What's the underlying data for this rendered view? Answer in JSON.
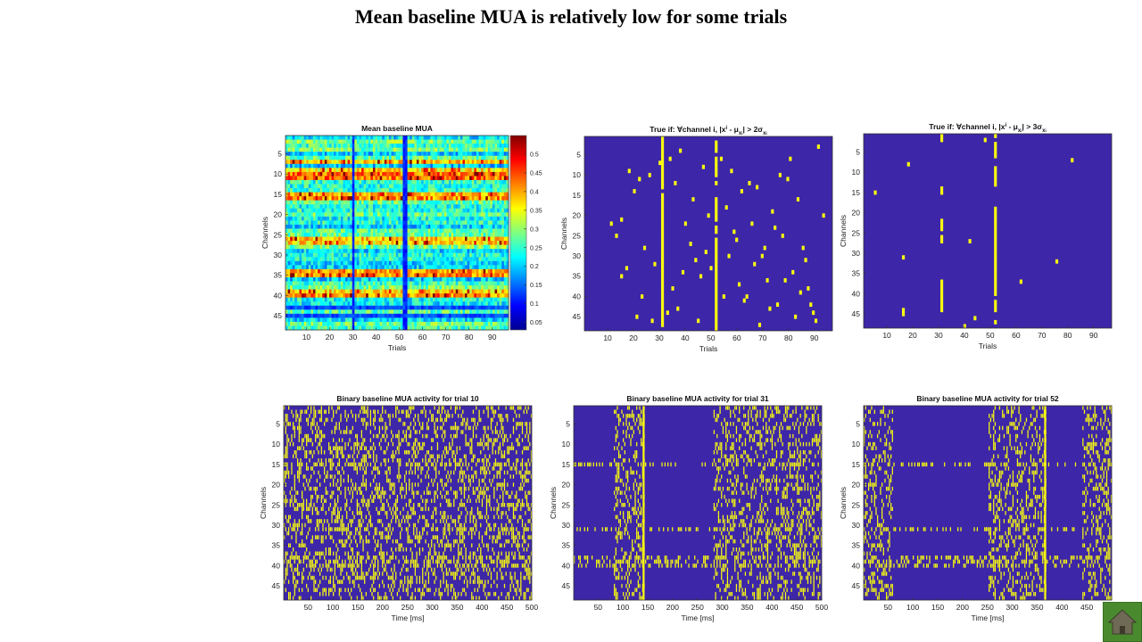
{
  "slide": {
    "title": "Mean baseline MUA is relatively low for some trials"
  },
  "icons": {
    "home": "home-icon"
  },
  "colors": {
    "background_low": "#3d26a8",
    "event": "#f9fb0e",
    "grid_line": "#4a5bd4",
    "bright_row": "#ffff40"
  },
  "chart_data": [
    {
      "id": "mean-baseline",
      "type": "heatmap",
      "title": "Mean baseline MUA",
      "xlabel": "Trials",
      "ylabel": "Channels",
      "xticks": [
        10,
        20,
        30,
        40,
        50,
        60,
        70,
        80,
        90
      ],
      "yticks": [
        5,
        10,
        15,
        20,
        25,
        30,
        35,
        40,
        45
      ],
      "xlim": [
        1,
        97
      ],
      "ylim": [
        1,
        48
      ],
      "colorbar": {
        "colormap": "jet",
        "ticks": [
          "0.05",
          "0.1",
          "0.15",
          "0.2",
          "0.25",
          "0.3",
          "0.35",
          "0.4",
          "0.45",
          "0.5"
        ],
        "range": [
          0.03,
          0.55
        ]
      },
      "high_rows": [
        7,
        9,
        10,
        11,
        15,
        16,
        26,
        27,
        34,
        35,
        39,
        40
      ],
      "low_columns": [
        30,
        52,
        53
      ],
      "low_rows": [
        43,
        45
      ]
    },
    {
      "id": "true-2sigma",
      "type": "heatmap",
      "title": "True if: ∀channel i, |xⁱ - μxᵢ| > 2σxᵢ",
      "title_parts": [
        "True if: ∀channel i, |x",
        "i",
        " - μ",
        "x",
        "i",
        "| > 2σ",
        "x",
        "i"
      ],
      "xlabel": "Trials",
      "ylabel": "Channels",
      "xticks": [
        10,
        20,
        30,
        40,
        50,
        60,
        70,
        80,
        90
      ],
      "yticks": [
        5,
        10,
        15,
        20,
        25,
        30,
        35,
        40,
        45
      ],
      "xlim": [
        1,
        97
      ],
      "ylim": [
        1,
        48
      ],
      "full_columns": [
        31,
        52
      ],
      "points": [
        [
          11,
          22
        ],
        [
          13,
          25
        ],
        [
          15,
          21
        ],
        [
          18,
          9
        ],
        [
          20,
          14
        ],
        [
          22,
          11
        ],
        [
          24,
          28
        ],
        [
          26,
          10
        ],
        [
          28,
          32
        ],
        [
          30,
          7
        ],
        [
          34,
          6
        ],
        [
          36,
          12
        ],
        [
          38,
          4
        ],
        [
          40,
          22
        ],
        [
          42,
          27
        ],
        [
          44,
          31
        ],
        [
          46,
          35
        ],
        [
          48,
          29
        ],
        [
          50,
          33
        ],
        [
          54,
          6
        ],
        [
          56,
          18
        ],
        [
          58,
          9
        ],
        [
          60,
          26
        ],
        [
          62,
          14
        ],
        [
          64,
          40
        ],
        [
          66,
          22
        ],
        [
          68,
          13
        ],
        [
          70,
          30
        ],
        [
          72,
          36
        ],
        [
          74,
          19
        ],
        [
          76,
          42
        ],
        [
          78,
          25
        ],
        [
          80,
          11
        ],
        [
          82,
          34
        ],
        [
          84,
          16
        ],
        [
          86,
          28
        ],
        [
          88,
          38
        ],
        [
          90,
          44
        ],
        [
          92,
          3
        ],
        [
          94,
          20
        ],
        [
          15,
          35
        ],
        [
          17,
          33
        ],
        [
          21,
          45
        ],
        [
          23,
          40
        ],
        [
          27,
          46
        ],
        [
          33,
          44
        ],
        [
          35,
          38
        ],
        [
          37,
          43
        ],
        [
          39,
          34
        ],
        [
          43,
          16
        ],
        [
          45,
          46
        ],
        [
          47,
          8
        ],
        [
          49,
          20
        ],
        [
          55,
          40
        ],
        [
          57,
          30
        ],
        [
          59,
          24
        ],
        [
          61,
          37
        ],
        [
          63,
          41
        ],
        [
          65,
          12
        ],
        [
          67,
          32
        ],
        [
          69,
          47
        ],
        [
          71,
          28
        ],
        [
          73,
          43
        ],
        [
          75,
          23
        ],
        [
          77,
          10
        ],
        [
          79,
          36
        ],
        [
          81,
          6
        ],
        [
          83,
          45
        ],
        [
          85,
          39
        ],
        [
          87,
          31
        ],
        [
          89,
          42
        ],
        [
          91,
          46
        ]
      ]
    },
    {
      "id": "true-3sigma",
      "type": "heatmap",
      "title": "True if: ∀channel i, |xⁱ - μxᵢ| > 3σxᵢ",
      "title_parts": [
        "True if: ∀channel i, |x",
        "i",
        " - μ",
        "x",
        "i",
        "| > 3σ",
        "x",
        "i"
      ],
      "xlabel": "Trials",
      "ylabel": "Channels",
      "xticks": [
        10,
        20,
        30,
        40,
        50,
        60,
        70,
        80,
        90
      ],
      "yticks": [
        5,
        10,
        15,
        20,
        25,
        30,
        35,
        40,
        45
      ],
      "xlim": [
        1,
        97
      ],
      "ylim": [
        1,
        48
      ],
      "partial_columns": [
        [
          31,
          [
            1,
            2,
            14,
            15,
            22,
            23,
            24,
            26,
            27,
            37,
            38,
            39,
            40,
            41,
            42,
            43,
            44
          ]
        ],
        [
          52,
          [
            1,
            3,
            4,
            5,
            6,
            9,
            10,
            11,
            12,
            13,
            19,
            20,
            21,
            22,
            23,
            24,
            25,
            26,
            27,
            28,
            29,
            30,
            31,
            32,
            33,
            34,
            35,
            36,
            37,
            38,
            39,
            40,
            42,
            43,
            44,
            47
          ]
        ]
      ],
      "points": [
        [
          5,
          15
        ],
        [
          18,
          8
        ],
        [
          16,
          44
        ],
        [
          16,
          45
        ],
        [
          16,
          31
        ],
        [
          42,
          27
        ],
        [
          48,
          2
        ],
        [
          62,
          37
        ],
        [
          76,
          32
        ],
        [
          82,
          7
        ],
        [
          40,
          48
        ],
        [
          44,
          46
        ]
      ]
    },
    {
      "id": "binary-trial-10",
      "type": "heatmap",
      "title": "Binary baseline MUA activity for trial 10",
      "xlabel": "Time [ms]",
      "ylabel": "Channels",
      "xticks": [
        50,
        100,
        150,
        200,
        250,
        300,
        350,
        400,
        450,
        500
      ],
      "yticks": [
        5,
        10,
        15,
        20,
        25,
        30,
        35,
        40,
        45
      ],
      "xlim": [
        1,
        500
      ],
      "ylim": [
        1,
        48
      ],
      "density": 0.32,
      "silent_windows": []
    },
    {
      "id": "binary-trial-31",
      "type": "heatmap",
      "title": "Binary baseline MUA activity for trial 31",
      "xlabel": "Time [ms]",
      "ylabel": "Channels",
      "xticks": [
        50,
        100,
        150,
        200,
        250,
        300,
        350,
        400,
        450,
        500
      ],
      "yticks": [
        5,
        10,
        15,
        20,
        25,
        30,
        35,
        40,
        45
      ],
      "xlim": [
        1,
        500
      ],
      "ylim": [
        1,
        48
      ],
      "density": 0.3,
      "silent_windows": [
        [
          1,
          80
        ],
        [
          145,
          280
        ]
      ],
      "full_columns": [
        140
      ]
    },
    {
      "id": "binary-trial-52",
      "type": "heatmap",
      "title": "Binary baseline MUA activity for trial 52",
      "xlabel": "Time [ms]",
      "ylabel": "Channels",
      "xticks": [
        50,
        100,
        150,
        200,
        250,
        300,
        350,
        400,
        450,
        500
      ],
      "yticks": [
        5,
        10,
        15,
        20,
        25,
        30,
        35,
        40,
        45
      ],
      "xlim": [
        1,
        500
      ],
      "ylim": [
        1,
        48
      ],
      "density": 0.3,
      "silent_windows": [
        [
          60,
          250
        ],
        [
          370,
          440
        ]
      ],
      "full_columns": [
        365
      ]
    }
  ]
}
